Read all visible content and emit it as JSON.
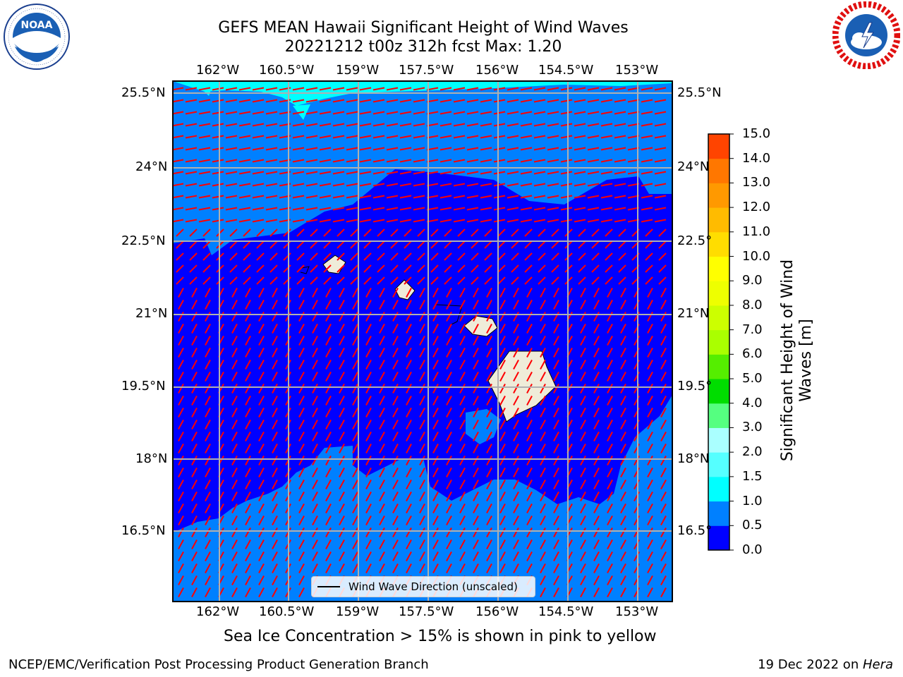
{
  "title": {
    "line1": "GEFS MEAN Hawaii Significant Height of Wind Waves",
    "line2": "20221212 t00z 312h fcst   Max: 1.20"
  },
  "logos": {
    "left": {
      "name": "NOAA",
      "ring_text": "NATIONAL OCEANIC AND ATMOSPHERIC ADMINISTRATION · U.S. DEPARTMENT OF COMMERCE"
    },
    "right": {
      "name": "NATIONAL WEATHER SERVICE"
    }
  },
  "map": {
    "lon_labels": [
      "162°W",
      "160.5°W",
      "159°W",
      "157.5°W",
      "156°W",
      "154.5°W",
      "153°W"
    ],
    "lat_labels": [
      "25.5°N",
      "24°N",
      "22.5°N",
      "21°N",
      "19.5°N",
      "18°N",
      "16.5°N"
    ],
    "lat_labels_right": [
      "25.5°N",
      "24°N",
      "22.5°",
      "21°N",
      "19.5°",
      "18°N",
      "16.5°"
    ],
    "colors": {
      "band_0_0_5": "#0000ff",
      "band_0_5_1_0": "#0080ff",
      "band_1_0_1_5": "#00ffff",
      "land": "#efecd9",
      "arrows": "#ff0000",
      "gridlines": "#b0b0b0"
    },
    "legend_label": "Wind Wave Direction (unscaled)"
  },
  "colorbar": {
    "label": "Significant Height of Wind Waves [m]",
    "ticks": [
      "15.0",
      "14.0",
      "13.0",
      "12.0",
      "11.0",
      "10.0",
      "9.0",
      "8.0",
      "7.0",
      "6.0",
      "5.0",
      "4.0",
      "3.0",
      "2.0",
      "1.5",
      "1.0",
      "0.5",
      "0.0"
    ],
    "colors_bottom_to_top": [
      "#0000ff",
      "#0080ff",
      "#00ffff",
      "#55ffff",
      "#aaffff",
      "#55ff80",
      "#00dd00",
      "#55ee00",
      "#aaff00",
      "#ccff00",
      "#eeff00",
      "#ffff00",
      "#ffdd00",
      "#ffbb00",
      "#ff9900",
      "#ff7700",
      "#ff4400"
    ]
  },
  "sea_ice_note": "Sea Ice Concentration > 15% is shown in pink to yellow",
  "footer": {
    "left": "NCEP/EMC/Verification Post Processing Product Generation Branch",
    "right_prefix": "19 Dec 2022 on ",
    "right_host": "Hera"
  }
}
